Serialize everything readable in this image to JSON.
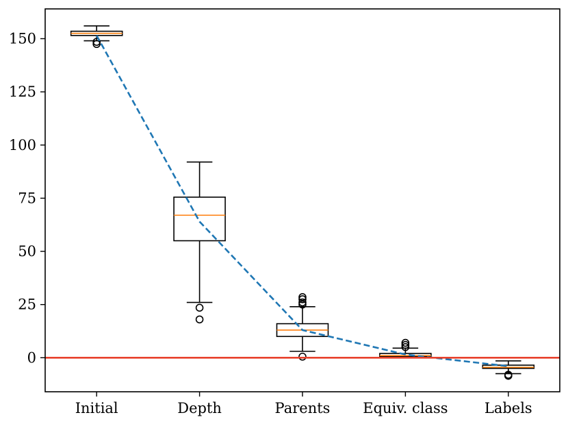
{
  "chart_data": {
    "type": "box",
    "title": "",
    "xlabel": "",
    "ylabel": "",
    "categories": [
      "Initial",
      "Depth",
      "Parents",
      "Equiv. class",
      "Labels"
    ],
    "ylim": [
      -16,
      164
    ],
    "yticks": [
      0,
      25,
      50,
      75,
      100,
      125,
      150
    ],
    "grid": false,
    "legend": "none",
    "boxes": [
      {
        "whisker_low": 149,
        "q1": 151.5,
        "median": 152.5,
        "q3": 153.5,
        "whisker_high": 156,
        "outliers": [
          148.5,
          147.5
        ]
      },
      {
        "whisker_low": 26,
        "q1": 55,
        "median": 67,
        "q3": 75.5,
        "whisker_high": 92,
        "outliers": [
          23.5,
          18
        ]
      },
      {
        "whisker_low": 3,
        "q1": 10,
        "median": 13,
        "q3": 16,
        "whisker_high": 24,
        "outliers": [
          0.5,
          25,
          26,
          27.5,
          28.5
        ]
      },
      {
        "whisker_low": 0,
        "q1": 0.5,
        "median": 1,
        "q3": 2,
        "whisker_high": 4.5,
        "outliers": [
          5,
          6,
          7
        ]
      },
      {
        "whisker_low": -7.5,
        "q1": -5,
        "median": -4.5,
        "q3": -3.5,
        "whisker_high": -1.5,
        "outliers": [
          -8,
          -8.5
        ]
      }
    ],
    "mean_line": {
      "style": "dashed",
      "values": [
        151.5,
        64,
        13,
        1.5,
        -4
      ]
    },
    "reference_line": {
      "y": 0
    },
    "colors": {
      "box": "#000000",
      "median": "#ff7f0e",
      "mean_line": "#1f77b4",
      "reference_line": "#e8412c"
    }
  }
}
